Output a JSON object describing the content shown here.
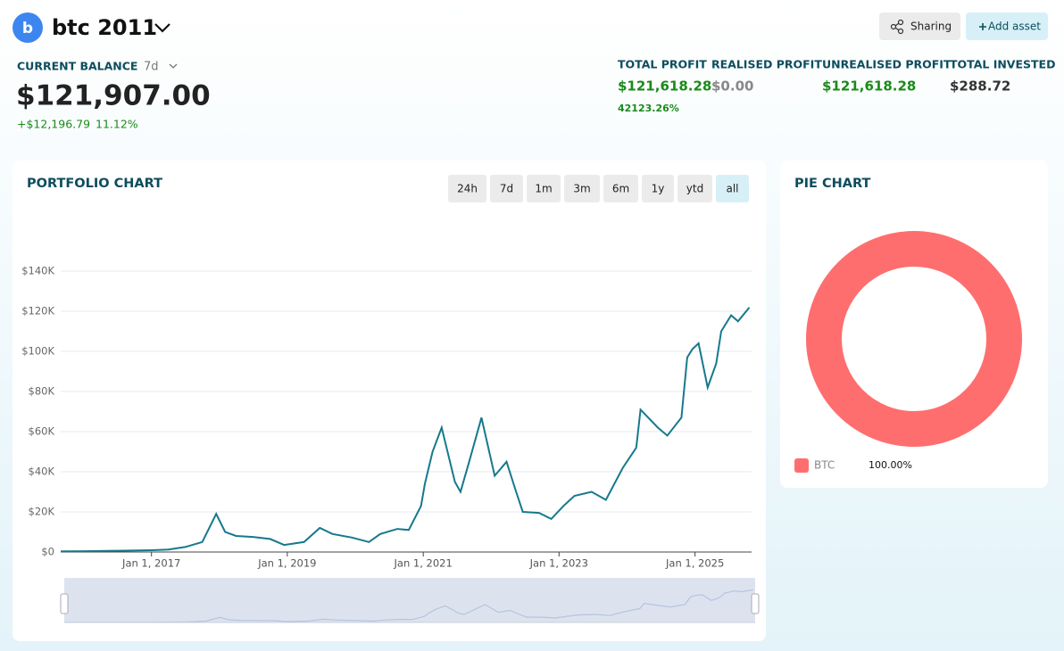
{
  "header": {
    "avatar": "b",
    "title": "btc 2011",
    "sharing": "Sharing",
    "add_asset": "Add asset"
  },
  "balance": {
    "label": "CURRENT BALANCE",
    "period": "7d",
    "value": "$121,907.00",
    "change": "+$12,196.79",
    "change_pct": "11.12%"
  },
  "stats": [
    {
      "label": "TOTAL PROFIT",
      "value": "$121,618.28",
      "sub": "42123.26%"
    },
    {
      "label": "REALISED PROFIT",
      "value": "$0.00"
    },
    {
      "label": "UNREALISED PROFIT",
      "value": "$121,618.28"
    },
    {
      "label": "TOTAL INVESTED",
      "value": "$288.72"
    }
  ],
  "range_buttons": {
    "options": [
      "24h",
      "7d",
      "1m",
      "3m",
      "6m",
      "1y",
      "ytd",
      "all"
    ],
    "selected": "all"
  },
  "chart_data": [
    {
      "type": "line",
      "title": "PORTFOLIO CHART",
      "color": "#16798c",
      "grid": true,
      "x": [
        "2015-09-01",
        "2016-01-01",
        "2016-07-01",
        "2017-01-01",
        "2017-04-01",
        "2017-07-01",
        "2017-10-01",
        "2017-12-15",
        "2018-02-01",
        "2018-04-01",
        "2018-07-01",
        "2018-10-01",
        "2018-12-15",
        "2019-04-01",
        "2019-06-25",
        "2019-09-01",
        "2019-12-15",
        "2020-03-15",
        "2020-05-15",
        "2020-08-15",
        "2020-10-15",
        "2020-12-20",
        "2021-01-10",
        "2021-02-20",
        "2021-04-10",
        "2021-06-20",
        "2021-07-20",
        "2021-09-05",
        "2021-11-10",
        "2022-01-20",
        "2022-03-25",
        "2022-05-15",
        "2022-06-20",
        "2022-09-15",
        "2022-11-20",
        "2023-01-25",
        "2023-03-25",
        "2023-06-25",
        "2023-09-10",
        "2023-12-10",
        "2024-02-20",
        "2024-03-14",
        "2024-06-15",
        "2024-08-05",
        "2024-10-20",
        "2024-11-20",
        "2024-12-17",
        "2025-01-20",
        "2025-03-10",
        "2025-04-25",
        "2025-05-22",
        "2025-07-14",
        "2025-08-20",
        "2025-10-20"
      ],
      "values": [
        300,
        400,
        600,
        900,
        1200,
        2500,
        5000,
        19000,
        10000,
        8000,
        7500,
        6500,
        3500,
        5000,
        12000,
        9000,
        7200,
        5000,
        9000,
        11500,
        11000,
        23000,
        34000,
        50000,
        62000,
        35000,
        30000,
        45000,
        67000,
        38000,
        45000,
        30000,
        20000,
        19500,
        16500,
        23000,
        28000,
        30000,
        26000,
        42000,
        52000,
        71000,
        62000,
        58000,
        67000,
        97000,
        101000,
        104000,
        82000,
        94000,
        110000,
        118000,
        115000,
        121907
      ],
      "xlim": [
        "2015-09-01",
        "2025-11-01"
      ],
      "xticks": [
        {
          "value": "2017-01-01",
          "label": "Jan 1, 2017"
        },
        {
          "value": "2019-01-01",
          "label": "Jan 1, 2019"
        },
        {
          "value": "2021-01-01",
          "label": "Jan 1, 2021"
        },
        {
          "value": "2023-01-01",
          "label": "Jan 1, 2023"
        },
        {
          "value": "2025-01-01",
          "label": "Jan 1, 2025"
        }
      ],
      "ylim": [
        0,
        140000
      ],
      "yticks": [
        {
          "value": 0,
          "label": "$0"
        },
        {
          "value": 20000,
          "label": "$20K"
        },
        {
          "value": 40000,
          "label": "$40K"
        },
        {
          "value": 60000,
          "label": "$60K"
        },
        {
          "value": 80000,
          "label": "$80K"
        },
        {
          "value": 100000,
          "label": "$100K"
        },
        {
          "value": 120000,
          "label": "$120K"
        },
        {
          "value": 140000,
          "label": "$140K"
        }
      ]
    },
    {
      "type": "pie",
      "title": "PIE CHART",
      "donut": true,
      "categories": [
        "BTC"
      ],
      "values": [
        100
      ],
      "value_labels": [
        "100.00%"
      ],
      "colors": [
        "#ff6e6e"
      ]
    }
  ]
}
